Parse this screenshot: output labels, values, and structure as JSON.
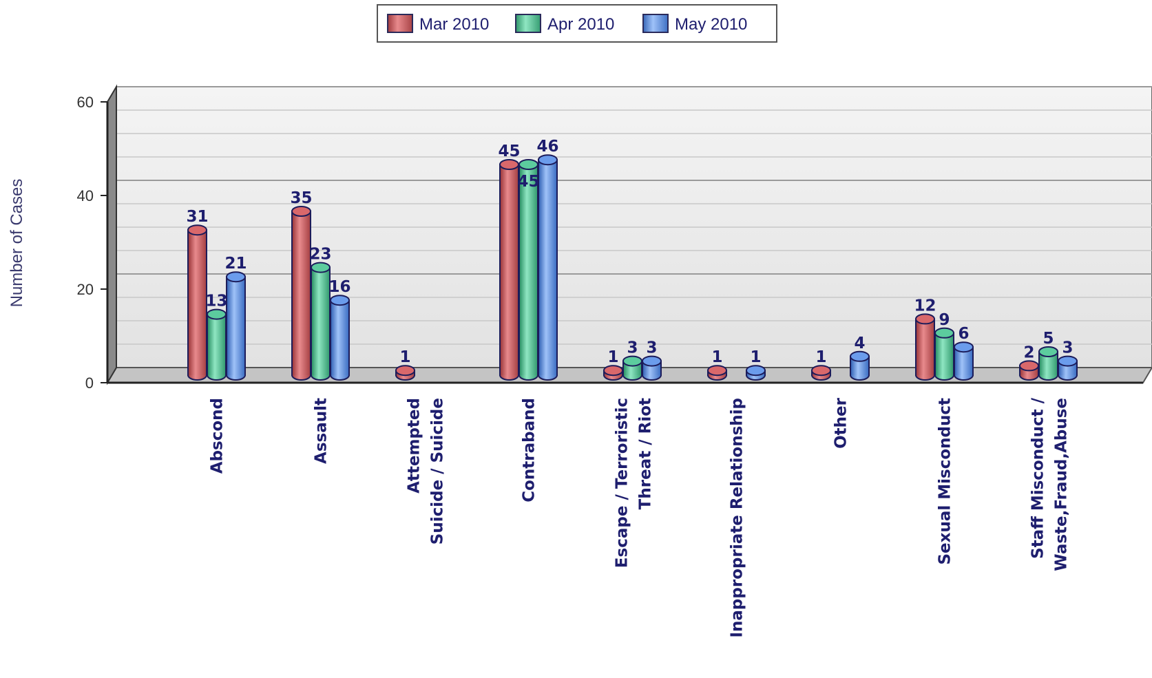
{
  "chart_data": {
    "type": "bar",
    "ylabel": "Number of Cases",
    "ylim": [
      0,
      60
    ],
    "yticks": [
      0,
      20,
      40,
      60
    ],
    "grid": true,
    "legend_position": "top-center",
    "categories": [
      [
        "Abscond"
      ],
      [
        "Assault"
      ],
      [
        "Attempted",
        "Suicide / Suicide"
      ],
      [
        "Contraband"
      ],
      [
        "Escape / Terroristic",
        "Threat / Riot"
      ],
      [
        "Inappropriate Relationship"
      ],
      [
        "Other"
      ],
      [
        "Sexual Misconduct"
      ],
      [
        "Staff Misconduct /",
        "Waste,Fraud,Abuse"
      ]
    ],
    "series": [
      {
        "name": "Mar 2010",
        "color": "#d9686b",
        "values": [
          31,
          35,
          1,
          45,
          1,
          1,
          1,
          12,
          2
        ]
      },
      {
        "name": "Apr 2010",
        "color": "#5ccc9e",
        "values": [
          13,
          23,
          null,
          45,
          3,
          null,
          null,
          9,
          5
        ]
      },
      {
        "name": "May 2010",
        "color": "#6b9cec",
        "values": [
          21,
          16,
          null,
          46,
          3,
          1,
          4,
          6,
          3
        ]
      }
    ]
  }
}
